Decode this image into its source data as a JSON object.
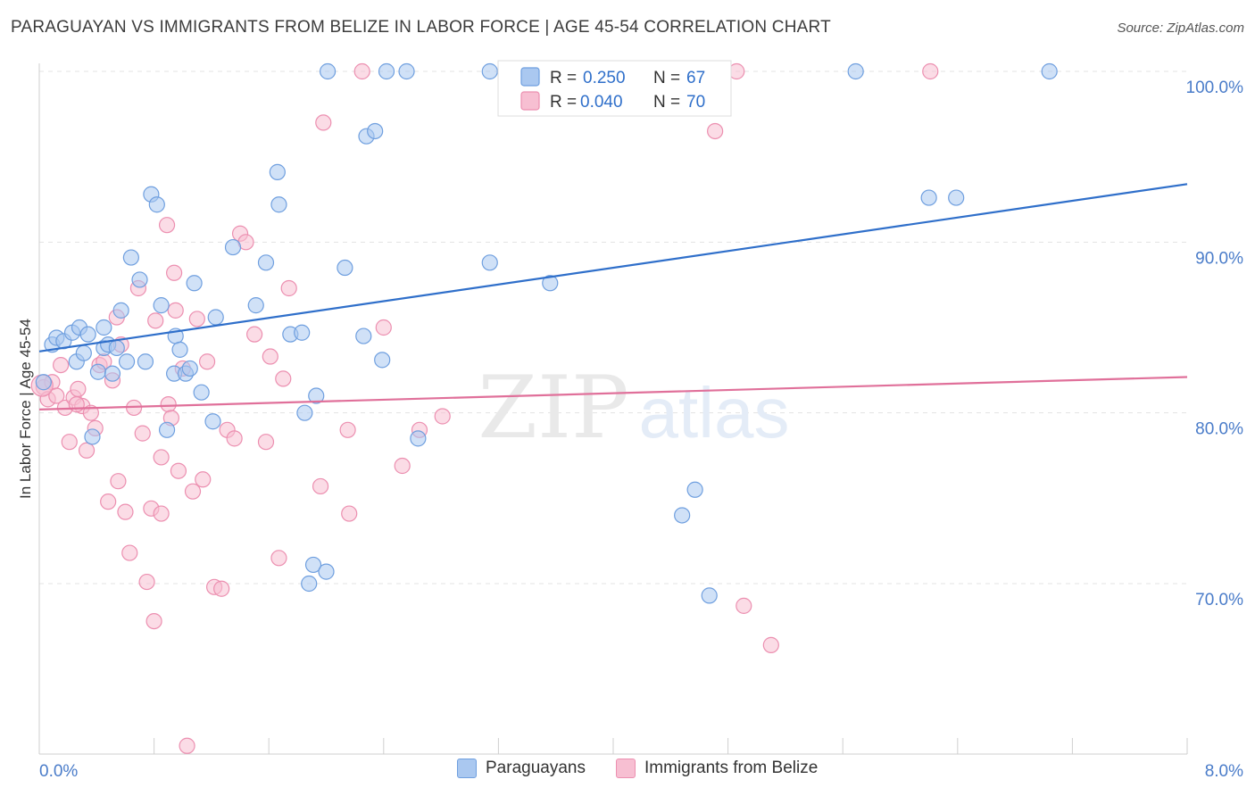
{
  "title": "PARAGUAYAN VS IMMIGRANTS FROM BELIZE IN LABOR FORCE | AGE 45-54 CORRELATION CHART",
  "source": "Source: ZipAtlas.com",
  "watermark": {
    "zip": "ZIP",
    "atlas": "atlas"
  },
  "colors": {
    "blue_fill": "#aac8f0",
    "blue_stroke": "#6f9fdf",
    "blue_line": "#2f6fca",
    "pink_fill": "#f7bfd2",
    "pink_stroke": "#ec8fb0",
    "pink_line": "#e0709a",
    "axis_text": "#4a7cc9",
    "grid": "#e3e3e3"
  },
  "chart_data": {
    "type": "scatter",
    "ylabel": "In Labor Force | Age 45-54",
    "xlim": [
      0,
      8
    ],
    "ylim": [
      60,
      103
    ],
    "x_tick_labels": [
      "0.0%",
      "8.0%"
    ],
    "y_ticks": [
      70,
      80,
      90,
      100
    ],
    "y_tick_labels": [
      "70.0%",
      "80.0%",
      "90.0%",
      "100.0%"
    ],
    "legend_top": [
      {
        "r_label": "R =",
        "r_value": "0.250",
        "n_label": "N =",
        "n_value": "67"
      },
      {
        "r_label": "R =",
        "r_value": "0.040",
        "n_label": "N =",
        "n_value": "70"
      }
    ],
    "series": [
      {
        "name": "Paraguayans",
        "trend": {
          "x": [
            0,
            8
          ],
          "y": [
            83.6,
            93.4
          ]
        },
        "points": [
          [
            0.03,
            81.8
          ],
          [
            0.09,
            84.0
          ],
          [
            0.12,
            84.4
          ],
          [
            0.17,
            84.2
          ],
          [
            0.23,
            84.7
          ],
          [
            0.26,
            83.0
          ],
          [
            0.28,
            85.0
          ],
          [
            0.31,
            83.5
          ],
          [
            0.34,
            84.6
          ],
          [
            0.37,
            78.6
          ],
          [
            0.41,
            82.4
          ],
          [
            0.45,
            83.8
          ],
          [
            0.48,
            84.0
          ],
          [
            0.51,
            82.3
          ],
          [
            0.54,
            83.8
          ],
          [
            0.57,
            86.0
          ],
          [
            0.61,
            83.0
          ],
          [
            0.64,
            89.1
          ],
          [
            0.7,
            87.8
          ],
          [
            0.74,
            83.0
          ],
          [
            0.78,
            92.8
          ],
          [
            0.82,
            92.2
          ],
          [
            0.85,
            86.3
          ],
          [
            0.89,
            79.0
          ],
          [
            0.94,
            82.3
          ],
          [
            0.95,
            84.5
          ],
          [
            0.98,
            83.7
          ],
          [
            1.02,
            82.3
          ],
          [
            1.05,
            82.6
          ],
          [
            1.08,
            87.6
          ],
          [
            1.13,
            81.2
          ],
          [
            1.21,
            79.5
          ],
          [
            1.23,
            85.6
          ],
          [
            1.35,
            89.7
          ],
          [
            1.51,
            86.3
          ],
          [
            1.58,
            88.8
          ],
          [
            1.66,
            94.1
          ],
          [
            1.67,
            92.2
          ],
          [
            1.75,
            84.6
          ],
          [
            1.85,
            80.0
          ],
          [
            1.91,
            71.1
          ],
          [
            1.88,
            70.0
          ],
          [
            1.93,
            81.0
          ],
          [
            2.0,
            70.7
          ],
          [
            2.01,
            100.0
          ],
          [
            2.13,
            88.5
          ],
          [
            2.26,
            84.5
          ],
          [
            2.28,
            96.2
          ],
          [
            2.34,
            96.5
          ],
          [
            2.39,
            83.1
          ],
          [
            2.42,
            100.0
          ],
          [
            2.56,
            100.0
          ],
          [
            2.64,
            78.5
          ],
          [
            3.14,
            88.8
          ],
          [
            3.14,
            100.0
          ],
          [
            3.37,
            100.0
          ],
          [
            3.56,
            87.6
          ],
          [
            4.18,
            100.0
          ],
          [
            4.48,
            74.0
          ],
          [
            4.57,
            75.5
          ],
          [
            4.67,
            69.3
          ],
          [
            5.69,
            100.0
          ],
          [
            6.2,
            92.6
          ],
          [
            6.39,
            92.6
          ],
          [
            7.04,
            100.0
          ],
          [
            1.83,
            84.7
          ],
          [
            0.45,
            85.0
          ]
        ]
      },
      {
        "name": "Immigrants from Belize",
        "trend": {
          "x": [
            0,
            8
          ],
          "y": [
            80.2,
            82.1
          ]
        },
        "points": [
          [
            0.03,
            81.5
          ],
          [
            0.06,
            80.8
          ],
          [
            0.09,
            81.8
          ],
          [
            0.12,
            81.0
          ],
          [
            0.15,
            82.8
          ],
          [
            0.18,
            80.3
          ],
          [
            0.21,
            78.3
          ],
          [
            0.24,
            80.9
          ],
          [
            0.27,
            81.4
          ],
          [
            0.3,
            80.4
          ],
          [
            0.33,
            77.8
          ],
          [
            0.36,
            80.0
          ],
          [
            0.39,
            79.1
          ],
          [
            0.42,
            82.8
          ],
          [
            0.45,
            83.0
          ],
          [
            0.48,
            74.8
          ],
          [
            0.51,
            81.9
          ],
          [
            0.54,
            85.6
          ],
          [
            0.57,
            84.0
          ],
          [
            0.6,
            74.2
          ],
          [
            0.63,
            71.8
          ],
          [
            0.66,
            80.3
          ],
          [
            0.69,
            87.3
          ],
          [
            0.72,
            78.8
          ],
          [
            0.75,
            70.1
          ],
          [
            0.78,
            74.4
          ],
          [
            0.8,
            67.8
          ],
          [
            0.81,
            85.4
          ],
          [
            0.85,
            74.1
          ],
          [
            0.85,
            77.4
          ],
          [
            0.89,
            91.0
          ],
          [
            0.9,
            80.5
          ],
          [
            0.92,
            79.7
          ],
          [
            0.94,
            88.2
          ],
          [
            0.97,
            76.6
          ],
          [
            1.0,
            82.6
          ],
          [
            1.03,
            60.5
          ],
          [
            1.07,
            75.4
          ],
          [
            1.1,
            85.5
          ],
          [
            1.14,
            76.1
          ],
          [
            1.17,
            83.0
          ],
          [
            1.22,
            69.8
          ],
          [
            1.27,
            69.7
          ],
          [
            1.31,
            79.0
          ],
          [
            1.36,
            78.5
          ],
          [
            1.4,
            90.5
          ],
          [
            1.44,
            90.0
          ],
          [
            1.5,
            84.6
          ],
          [
            1.58,
            78.3
          ],
          [
            1.61,
            83.3
          ],
          [
            1.67,
            71.5
          ],
          [
            1.74,
            87.3
          ],
          [
            1.96,
            75.7
          ],
          [
            1.98,
            97.0
          ],
          [
            2.15,
            79.0
          ],
          [
            2.16,
            74.1
          ],
          [
            2.25,
            100.0
          ],
          [
            2.53,
            76.9
          ],
          [
            2.65,
            79.0
          ],
          [
            2.81,
            79.8
          ],
          [
            4.71,
            96.5
          ],
          [
            4.86,
            100.0
          ],
          [
            4.91,
            68.7
          ],
          [
            5.1,
            66.4
          ],
          [
            6.21,
            100.0
          ],
          [
            0.26,
            80.5
          ],
          [
            0.55,
            76.0
          ],
          [
            1.7,
            82.0
          ],
          [
            2.4,
            85.0
          ],
          [
            0.95,
            86.0
          ]
        ]
      }
    ]
  }
}
